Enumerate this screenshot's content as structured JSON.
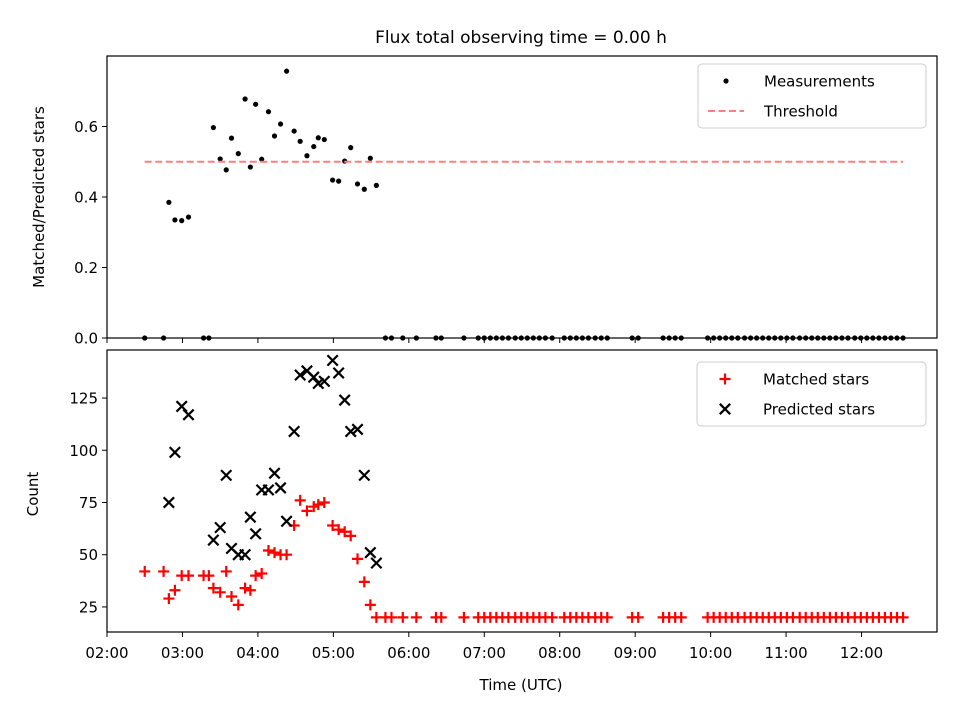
{
  "chart_data": [
    {
      "type": "scatter",
      "title": "Flux total observing time = 0.00 h",
      "xlabel": "",
      "ylabel": "Matched/Predicted stars",
      "x_unit": "hours_utc",
      "xlim": [
        2.0,
        13.0
      ],
      "ylim": [
        0.0,
        0.8
      ],
      "y_ticks": [
        0.0,
        0.2,
        0.4,
        0.6
      ],
      "y_tick_labels": [
        "0.0",
        "0.2",
        "0.4",
        "0.6"
      ],
      "legend_position": "top-right",
      "series": [
        {
          "name": "Measurements",
          "style": "dot",
          "color": "#000000",
          "points": [
            [
              2.5,
              0.0
            ],
            [
              2.75,
              0.0
            ],
            [
              2.82,
              0.385
            ],
            [
              2.9,
              0.335
            ],
            [
              2.99,
              0.333
            ],
            [
              3.08,
              0.343
            ],
            [
              3.28,
              0.0
            ],
            [
              3.35,
              0.0
            ],
            [
              3.41,
              0.597
            ],
            [
              3.5,
              0.508
            ],
            [
              3.58,
              0.477
            ],
            [
              3.65,
              0.567
            ],
            [
              3.74,
              0.523
            ],
            [
              3.83,
              0.678
            ],
            [
              3.9,
              0.485
            ],
            [
              3.97,
              0.663
            ],
            [
              4.05,
              0.507
            ],
            [
              4.14,
              0.642
            ],
            [
              4.22,
              0.573
            ],
            [
              4.3,
              0.607
            ],
            [
              4.38,
              0.757
            ],
            [
              4.48,
              0.587
            ],
            [
              4.56,
              0.558
            ],
            [
              4.65,
              0.517
            ],
            [
              4.74,
              0.543
            ],
            [
              4.8,
              0.568
            ],
            [
              4.88,
              0.563
            ],
            [
              4.99,
              0.448
            ],
            [
              5.07,
              0.445
            ],
            [
              5.15,
              0.502
            ],
            [
              5.23,
              0.54
            ],
            [
              5.32,
              0.437
            ],
            [
              5.41,
              0.422
            ],
            [
              5.49,
              0.51
            ],
            [
              5.57,
              0.433
            ],
            [
              5.69,
              0.0
            ],
            [
              5.77,
              0.0
            ],
            [
              5.92,
              0.0
            ],
            [
              6.1,
              0.0
            ],
            [
              6.36,
              0.0
            ],
            [
              6.43,
              0.0
            ],
            [
              6.73,
              0.0
            ],
            [
              6.92,
              0.0
            ],
            [
              7.0,
              0.0
            ],
            [
              7.08,
              0.0
            ],
            [
              7.16,
              0.0
            ],
            [
              7.24,
              0.0
            ],
            [
              7.32,
              0.0
            ],
            [
              7.41,
              0.0
            ],
            [
              7.49,
              0.0
            ],
            [
              7.57,
              0.0
            ],
            [
              7.65,
              0.0
            ],
            [
              7.73,
              0.0
            ],
            [
              7.81,
              0.0
            ],
            [
              7.9,
              0.0
            ],
            [
              8.06,
              0.0
            ],
            [
              8.14,
              0.0
            ],
            [
              8.22,
              0.0
            ],
            [
              8.3,
              0.0
            ],
            [
              8.38,
              0.0
            ],
            [
              8.47,
              0.0
            ],
            [
              8.55,
              0.0
            ],
            [
              8.63,
              0.0
            ],
            [
              8.96,
              0.0
            ],
            [
              9.04,
              0.0
            ],
            [
              9.37,
              0.0
            ],
            [
              9.45,
              0.0
            ],
            [
              9.53,
              0.0
            ],
            [
              9.61,
              0.0
            ],
            [
              9.96,
              0.0
            ],
            [
              10.04,
              0.0
            ],
            [
              10.12,
              0.0
            ],
            [
              10.2,
              0.0
            ],
            [
              10.28,
              0.0
            ],
            [
              10.36,
              0.0
            ],
            [
              10.45,
              0.0
            ],
            [
              10.53,
              0.0
            ],
            [
              10.61,
              0.0
            ],
            [
              10.69,
              0.0
            ],
            [
              10.77,
              0.0
            ],
            [
              10.85,
              0.0
            ],
            [
              10.93,
              0.0
            ],
            [
              11.01,
              0.0
            ],
            [
              11.09,
              0.0
            ],
            [
              11.18,
              0.0
            ],
            [
              11.26,
              0.0
            ],
            [
              11.34,
              0.0
            ],
            [
              11.42,
              0.0
            ],
            [
              11.5,
              0.0
            ],
            [
              11.58,
              0.0
            ],
            [
              11.66,
              0.0
            ],
            [
              11.74,
              0.0
            ],
            [
              11.82,
              0.0
            ],
            [
              11.91,
              0.0
            ],
            [
              11.99,
              0.0
            ],
            [
              12.07,
              0.0
            ],
            [
              12.15,
              0.0
            ],
            [
              12.23,
              0.0
            ],
            [
              12.31,
              0.0
            ],
            [
              12.39,
              0.0
            ],
            [
              12.47,
              0.0
            ],
            [
              12.55,
              0.0
            ]
          ]
        },
        {
          "name": "Threshold",
          "style": "dashed-line",
          "color": "#ff7f7f",
          "points": [
            [
              2.5,
              0.5
            ],
            [
              12.55,
              0.5
            ]
          ]
        }
      ]
    },
    {
      "type": "scatter",
      "title": "",
      "xlabel": "Time (UTC)",
      "ylabel": "Count",
      "x_unit": "hours_utc",
      "xlim": [
        2.0,
        13.0
      ],
      "ylim": [
        13.0,
        148.0
      ],
      "y_ticks": [
        25,
        50,
        75,
        100,
        125
      ],
      "y_tick_labels": [
        "25",
        "50",
        "75",
        "100",
        "125"
      ],
      "x_ticks": [
        2,
        3,
        4,
        5,
        6,
        7,
        8,
        9,
        10,
        11,
        12
      ],
      "x_tick_labels": [
        "02:00",
        "03:00",
        "04:00",
        "05:00",
        "06:00",
        "07:00",
        "08:00",
        "09:00",
        "10:00",
        "11:00",
        "12:00"
      ],
      "legend_position": "top-right",
      "series": [
        {
          "name": "Matched stars",
          "style": "plus",
          "color": "#ff0000",
          "points": [
            [
              2.5,
              42
            ],
            [
              2.75,
              42
            ],
            [
              2.82,
              29
            ],
            [
              2.9,
              33
            ],
            [
              2.99,
              40
            ],
            [
              3.08,
              40
            ],
            [
              3.28,
              40
            ],
            [
              3.35,
              40
            ],
            [
              3.41,
              34
            ],
            [
              3.5,
              32
            ],
            [
              3.58,
              42
            ],
            [
              3.65,
              30
            ],
            [
              3.74,
              26
            ],
            [
              3.83,
              34
            ],
            [
              3.9,
              33
            ],
            [
              3.97,
              40
            ],
            [
              4.05,
              41
            ],
            [
              4.14,
              52
            ],
            [
              4.22,
              51
            ],
            [
              4.3,
              50
            ],
            [
              4.38,
              50
            ],
            [
              4.48,
              64
            ],
            [
              4.56,
              76
            ],
            [
              4.65,
              71
            ],
            [
              4.74,
              73
            ],
            [
              4.8,
              74
            ],
            [
              4.88,
              75
            ],
            [
              4.99,
              64
            ],
            [
              5.07,
              62
            ],
            [
              5.15,
              61
            ],
            [
              5.23,
              59
            ],
            [
              5.32,
              48
            ],
            [
              5.41,
              37
            ],
            [
              5.49,
              26
            ],
            [
              5.57,
              20
            ],
            [
              5.69,
              20
            ],
            [
              5.77,
              20
            ],
            [
              5.92,
              20
            ],
            [
              6.1,
              20
            ],
            [
              6.36,
              20
            ],
            [
              6.43,
              20
            ],
            [
              6.73,
              20
            ],
            [
              6.92,
              20
            ],
            [
              7.0,
              20
            ],
            [
              7.08,
              20
            ],
            [
              7.16,
              20
            ],
            [
              7.24,
              20
            ],
            [
              7.32,
              20
            ],
            [
              7.41,
              20
            ],
            [
              7.49,
              20
            ],
            [
              7.57,
              20
            ],
            [
              7.65,
              20
            ],
            [
              7.73,
              20
            ],
            [
              7.81,
              20
            ],
            [
              7.9,
              20
            ],
            [
              8.06,
              20
            ],
            [
              8.14,
              20
            ],
            [
              8.22,
              20
            ],
            [
              8.3,
              20
            ],
            [
              8.38,
              20
            ],
            [
              8.47,
              20
            ],
            [
              8.55,
              20
            ],
            [
              8.63,
              20
            ],
            [
              8.96,
              20
            ],
            [
              9.04,
              20
            ],
            [
              9.37,
              20
            ],
            [
              9.45,
              20
            ],
            [
              9.53,
              20
            ],
            [
              9.61,
              20
            ],
            [
              9.96,
              20
            ],
            [
              10.04,
              20
            ],
            [
              10.12,
              20
            ],
            [
              10.2,
              20
            ],
            [
              10.28,
              20
            ],
            [
              10.36,
              20
            ],
            [
              10.45,
              20
            ],
            [
              10.53,
              20
            ],
            [
              10.61,
              20
            ],
            [
              10.69,
              20
            ],
            [
              10.77,
              20
            ],
            [
              10.85,
              20
            ],
            [
              10.93,
              20
            ],
            [
              11.01,
              20
            ],
            [
              11.09,
              20
            ],
            [
              11.18,
              20
            ],
            [
              11.26,
              20
            ],
            [
              11.34,
              20
            ],
            [
              11.42,
              20
            ],
            [
              11.5,
              20
            ],
            [
              11.58,
              20
            ],
            [
              11.66,
              20
            ],
            [
              11.74,
              20
            ],
            [
              11.82,
              20
            ],
            [
              11.91,
              20
            ],
            [
              11.99,
              20
            ],
            [
              12.07,
              20
            ],
            [
              12.15,
              20
            ],
            [
              12.23,
              20
            ],
            [
              12.31,
              20
            ],
            [
              12.39,
              20
            ],
            [
              12.47,
              20
            ],
            [
              12.55,
              20
            ]
          ]
        },
        {
          "name": "Predicted stars",
          "style": "x",
          "color": "#000000",
          "points": [
            [
              2.82,
              75
            ],
            [
              2.9,
              99
            ],
            [
              2.99,
              121
            ],
            [
              3.08,
              117
            ],
            [
              3.41,
              57
            ],
            [
              3.5,
              63
            ],
            [
              3.58,
              88
            ],
            [
              3.65,
              53
            ],
            [
              3.74,
              50
            ],
            [
              3.83,
              50
            ],
            [
              3.9,
              68
            ],
            [
              3.97,
              60
            ],
            [
              4.05,
              81
            ],
            [
              4.14,
              81
            ],
            [
              4.22,
              89
            ],
            [
              4.3,
              82
            ],
            [
              4.38,
              66
            ],
            [
              4.48,
              109
            ],
            [
              4.56,
              136
            ],
            [
              4.65,
              138
            ],
            [
              4.74,
              135
            ],
            [
              4.8,
              132
            ],
            [
              4.88,
              133
            ],
            [
              4.99,
              143
            ],
            [
              5.07,
              137
            ],
            [
              5.15,
              124
            ],
            [
              5.23,
              109
            ],
            [
              5.32,
              110
            ],
            [
              5.41,
              88
            ],
            [
              5.49,
              51
            ],
            [
              5.57,
              46
            ]
          ]
        }
      ]
    }
  ]
}
